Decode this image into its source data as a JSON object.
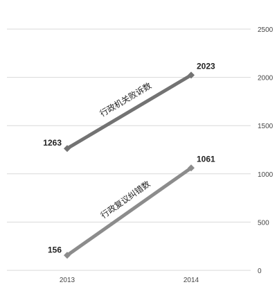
{
  "chart_data": {
    "type": "line",
    "categories": [
      "2013",
      "2014"
    ],
    "series": [
      {
        "name": "行政机关败诉数",
        "values": [
          1263,
          2023
        ],
        "color": "#737373"
      },
      {
        "name": "行政复议纠错数",
        "values": [
          156,
          1061
        ],
        "color": "#8c8c8c"
      }
    ],
    "ylim": [
      0,
      2500
    ],
    "yticks": [
      0,
      500,
      1000,
      1500,
      2000,
      2500
    ],
    "y_axis_position": "right",
    "grid": true,
    "legend": "inline labels along lines",
    "gridline_color": "#d9d9d9"
  }
}
